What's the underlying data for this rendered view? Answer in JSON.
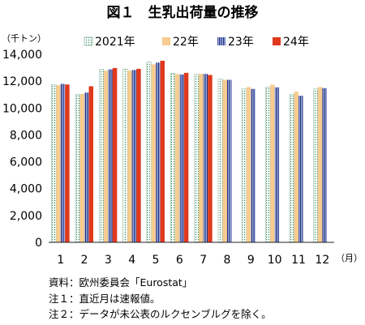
{
  "chart_data": {
    "type": "bar",
    "title": "図１　生乳出荷量の推移",
    "ylabel": "（千トン）",
    "xlabel": "（月）",
    "ylim": [
      0,
      14000
    ],
    "yticks": [
      "0",
      "2,000",
      "4,000",
      "6,000",
      "8,000",
      "10,000",
      "12,000",
      "14,000"
    ],
    "categories": [
      "1",
      "2",
      "3",
      "4",
      "5",
      "6",
      "7",
      "8",
      "9",
      "10",
      "11",
      "12"
    ],
    "legend_position": "top",
    "grid": false,
    "series": [
      {
        "name": "2021年",
        "color": "#e8f4ec",
        "pattern": "dots",
        "values": [
          11750,
          11000,
          12880,
          12900,
          13420,
          12560,
          12510,
          12150,
          11420,
          11560,
          11000,
          11420
        ]
      },
      {
        "name": "22年",
        "color": "#f6cc90",
        "pattern": "solid",
        "values": [
          11700,
          11050,
          12780,
          12780,
          13250,
          12530,
          12540,
          12100,
          11560,
          11740,
          11220,
          11560
        ]
      },
      {
        "name": "23年",
        "color": "#8a9ad2",
        "pattern": "stripes",
        "values": [
          11800,
          11150,
          12880,
          12830,
          13380,
          12500,
          12540,
          12100,
          11420,
          11540,
          10910,
          11480
        ]
      },
      {
        "name": "24年",
        "color": "#e0391d",
        "pattern": "solid",
        "values": [
          11750,
          11620,
          12980,
          12920,
          13520,
          12620,
          12460,
          null,
          null,
          null,
          null,
          null
        ]
      }
    ]
  },
  "notes": [
    "資料：欧州委員会「Eurostat」",
    "注１：直近月は速報値。",
    "注２：データが未公表のルクセンブルグを除く。"
  ]
}
